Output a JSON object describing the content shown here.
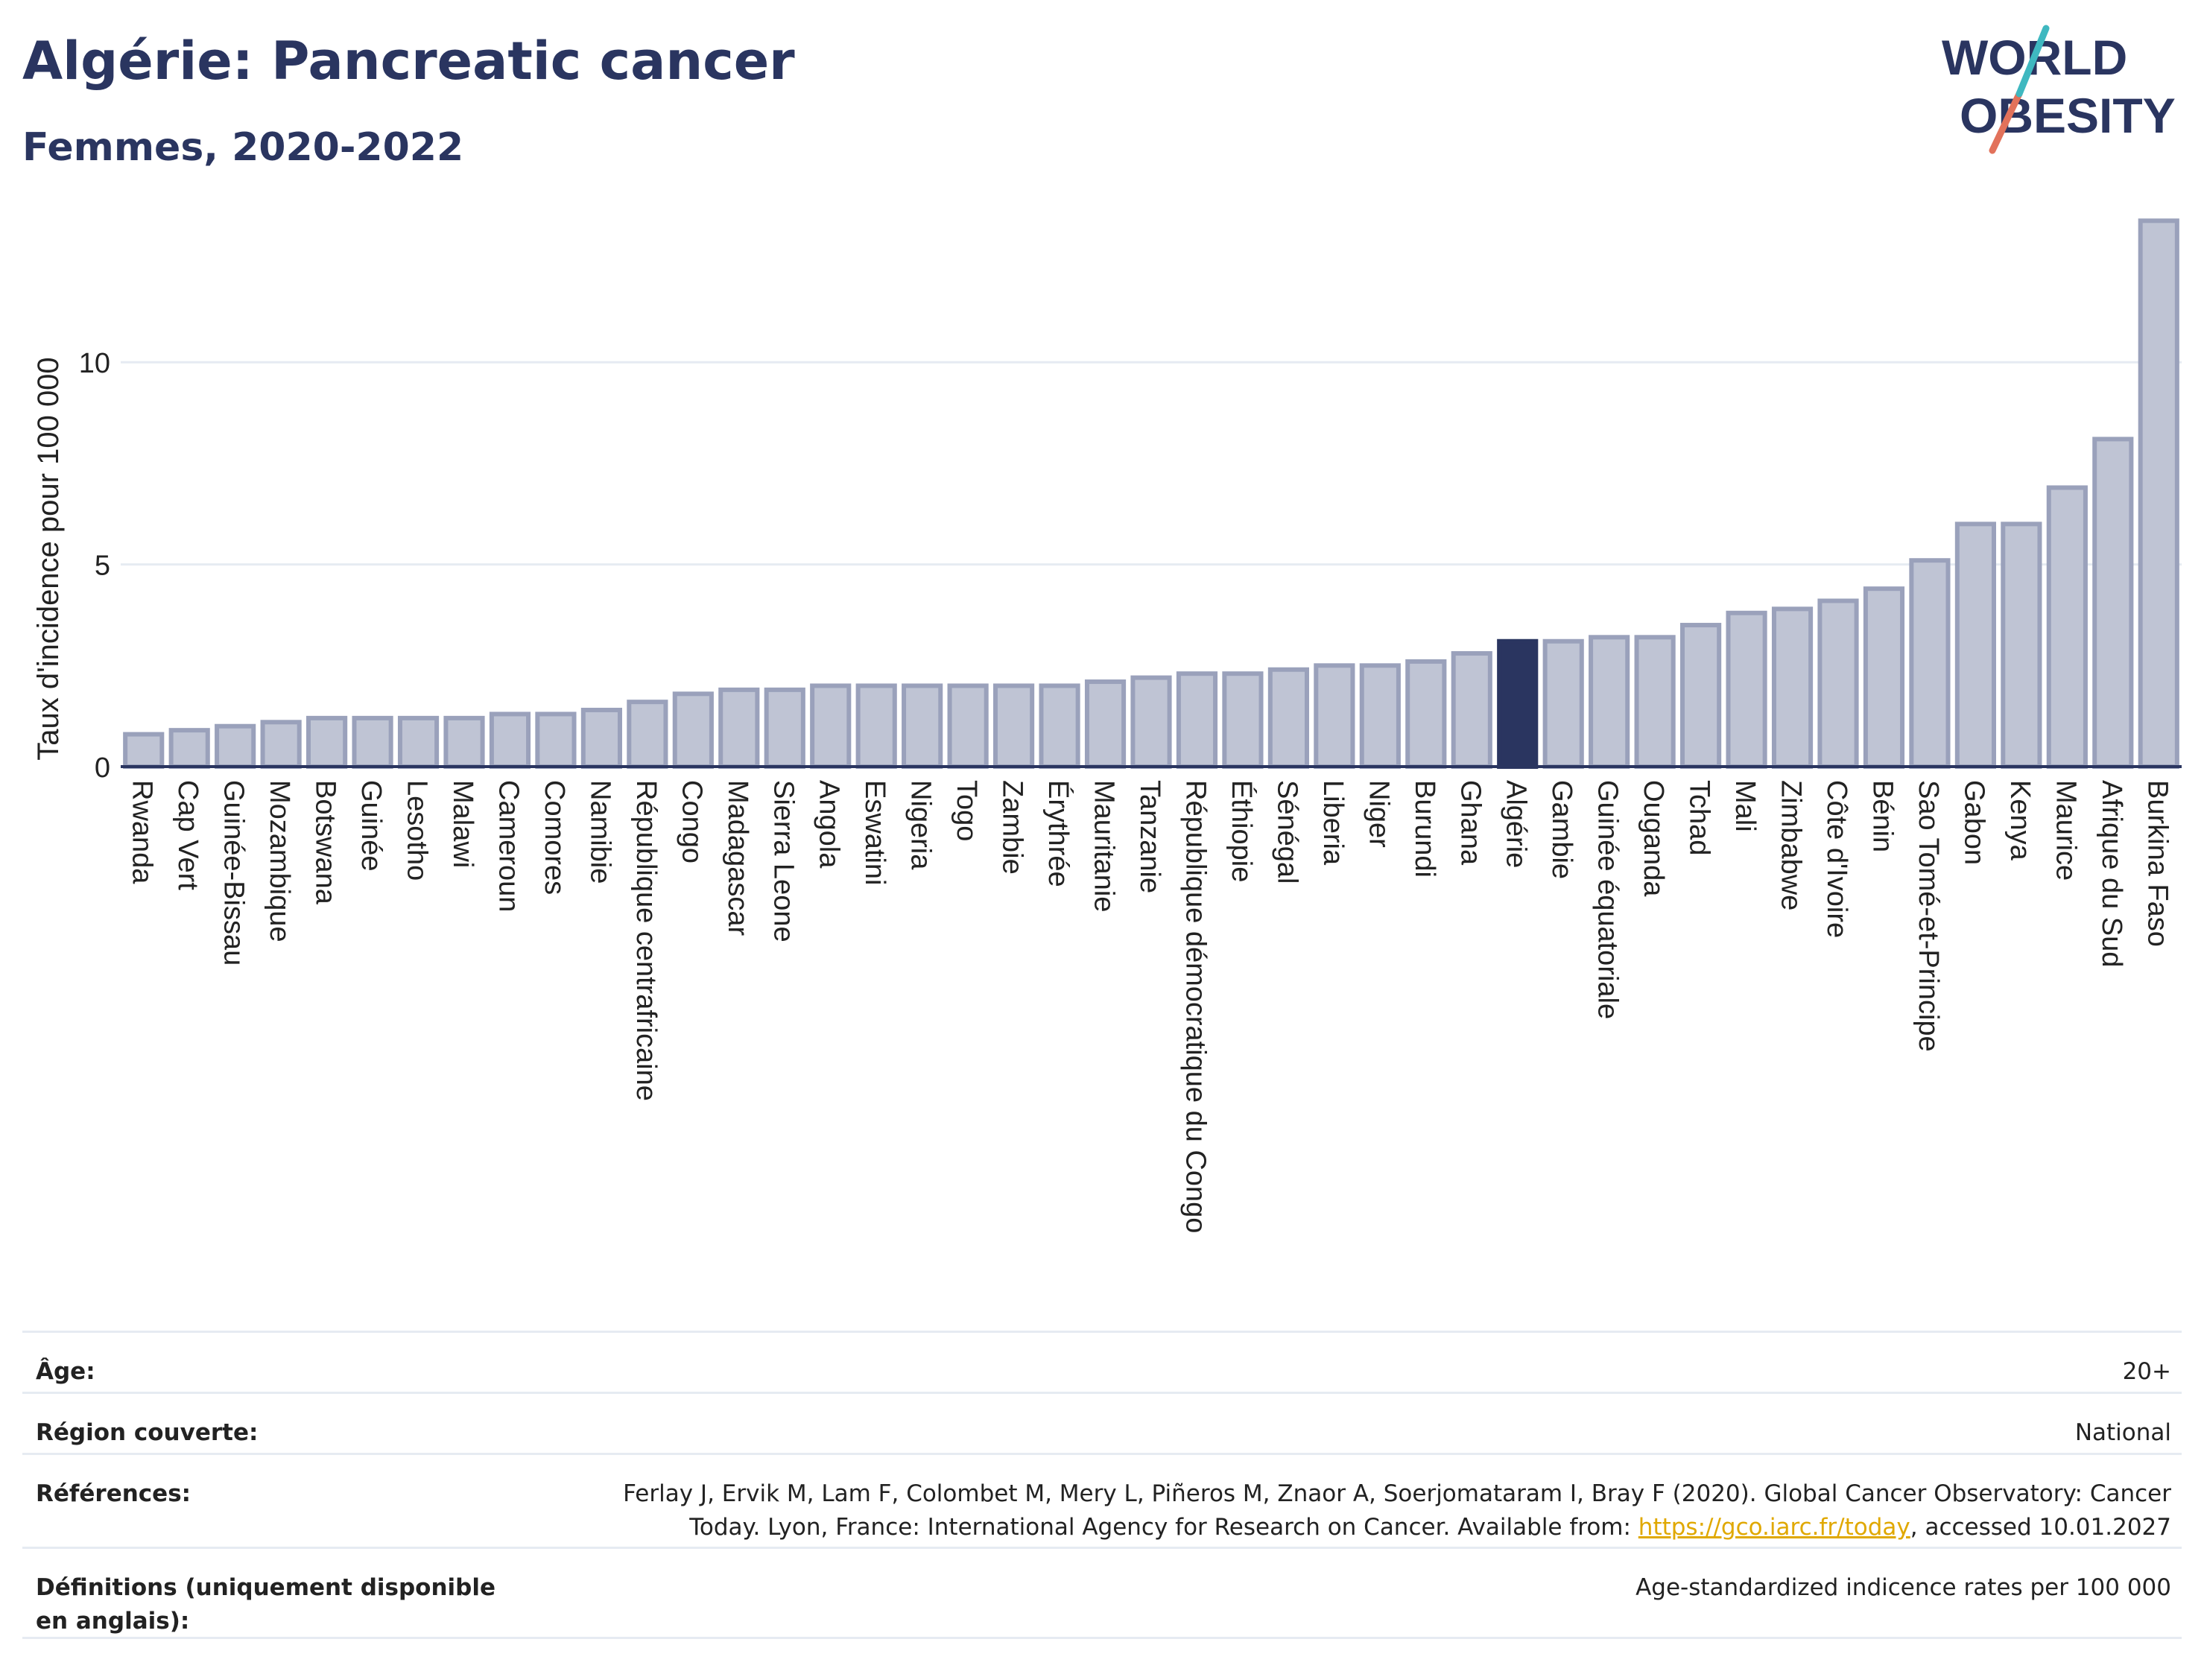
{
  "header": {
    "title": "Algérie: Pancreatic cancer",
    "subtitle": "Femmes, 2020-2022"
  },
  "logo": {
    "line1": "WORLD",
    "line2": "OBESITY",
    "colors": {
      "text": "#2a3560",
      "slash_teal": "#3fb8c0",
      "slash_coral": "#e2725b"
    }
  },
  "colors": {
    "bar": "#bfc4d4",
    "bar_stroke": "#9aa1bb",
    "highlight": "#2a3560",
    "grid": "#e6ebf2",
    "axis": "#2a3560"
  },
  "chart_data": {
    "type": "bar",
    "ylabel": "Taux d'incidence pour 100 000",
    "ylim": [
      0,
      13.8
    ],
    "yticks": [
      0,
      5,
      10
    ],
    "grid": true,
    "highlight": "Algérie",
    "categories": [
      "Rwanda",
      "Cap Vert",
      "Guinée-Bissau",
      "Mozambique",
      "Botswana",
      "Guinée",
      "Lesotho",
      "Malawi",
      "Cameroun",
      "Comores",
      "Namibie",
      "République centrafricaine",
      "Congo",
      "Madagascar",
      "Sierra Leone",
      "Angola",
      "Eswatini",
      "Nigeria",
      "Togo",
      "Zambie",
      "Érythrée",
      "Mauritanie",
      "Tanzanie",
      "République démocratique du Congo",
      "Éthiopie",
      "Sénégal",
      "Liberia",
      "Niger",
      "Burundi",
      "Ghana",
      "Algérie",
      "Gambie",
      "Guinée équatoriale",
      "Ouganda",
      "Tchad",
      "Mali",
      "Zimbabwe",
      "Côte d'Ivoire",
      "Bénin",
      "Sao Tomé-et-Principe",
      "Gabon",
      "Kenya",
      "Maurice",
      "Afrique du Sud",
      "Burkina Faso"
    ],
    "values": [
      0.8,
      0.9,
      1.0,
      1.1,
      1.2,
      1.2,
      1.2,
      1.2,
      1.3,
      1.3,
      1.4,
      1.6,
      1.8,
      1.9,
      1.9,
      2.0,
      2.0,
      2.0,
      2.0,
      2.0,
      2.0,
      2.1,
      2.2,
      2.3,
      2.3,
      2.4,
      2.5,
      2.5,
      2.6,
      2.8,
      3.1,
      3.1,
      3.2,
      3.2,
      3.5,
      3.8,
      3.9,
      4.1,
      4.4,
      5.1,
      6.0,
      6.0,
      6.9,
      8.1,
      13.5
    ]
  },
  "meta": [
    {
      "label": "Âge:",
      "value": "20+"
    },
    {
      "label": "Région couverte:",
      "value": "National"
    },
    {
      "label": "Références:",
      "value_pre": "Ferlay J, Ervik M, Lam F, Colombet M, Mery L, Piñeros M, Znaor A, Soerjomataram I, Bray F (2020). Global Cancer Observatory: Cancer Today. Lyon, France: International Agency for Research on Cancer. Available from: ",
      "link": "https://gco.iarc.fr/today",
      "value_post": ", accessed 10.01.2027"
    },
    {
      "label": "Définitions (uniquement disponible en anglais):",
      "value": "Age-standardized indicence rates per 100 000"
    }
  ]
}
